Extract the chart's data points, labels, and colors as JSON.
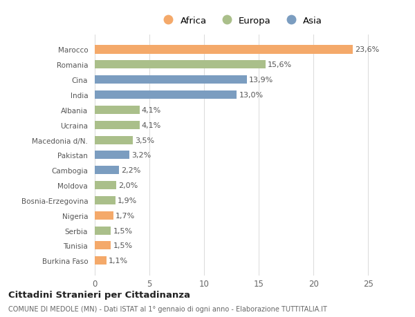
{
  "categories": [
    "Marocco",
    "Romania",
    "Cina",
    "India",
    "Albania",
    "Ucraina",
    "Macedonia d/N.",
    "Pakistan",
    "Cambogia",
    "Moldova",
    "Bosnia-Erzegovina",
    "Nigeria",
    "Serbia",
    "Tunisia",
    "Burkina Faso"
  ],
  "values": [
    23.6,
    15.6,
    13.9,
    13.0,
    4.1,
    4.1,
    3.5,
    3.2,
    2.2,
    2.0,
    1.9,
    1.7,
    1.5,
    1.5,
    1.1
  ],
  "continents": [
    "Africa",
    "Europa",
    "Asia",
    "Asia",
    "Europa",
    "Europa",
    "Europa",
    "Asia",
    "Asia",
    "Europa",
    "Europa",
    "Africa",
    "Europa",
    "Africa",
    "Africa"
  ],
  "colors": {
    "Africa": "#F4A96A",
    "Europa": "#AABF8A",
    "Asia": "#7B9DC0"
  },
  "legend_labels": [
    "Africa",
    "Europa",
    "Asia"
  ],
  "title": "Cittadini Stranieri per Cittadinanza",
  "subtitle": "COMUNE DI MEDOLE (MN) - Dati ISTAT al 1° gennaio di ogni anno - Elaborazione TUTTITALIA.IT",
  "xlabel_values": [
    0,
    5,
    10,
    15,
    20,
    25
  ],
  "xlim": [
    -0.3,
    27
  ],
  "background_color": "#ffffff",
  "grid_color": "#dddddd"
}
